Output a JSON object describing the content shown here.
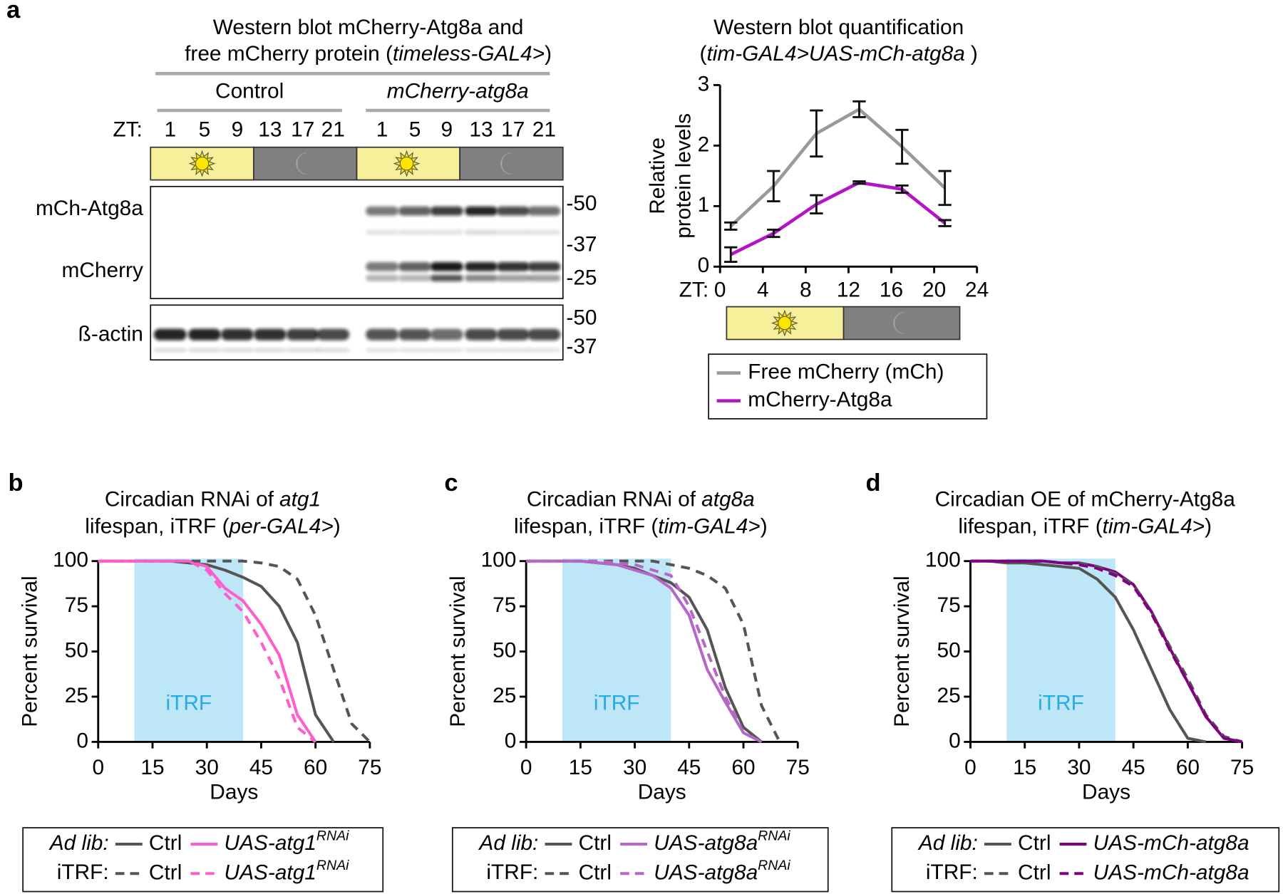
{
  "western_blot": {
    "panel": "a",
    "title": [
      [
        "Western blot mCherry-Atg8a and"
      ],
      [
        "free mCherry protein (",
        "timeless-GAL4>",
        ")"
      ]
    ],
    "groups": [
      "Control",
      "mCherry-atg8a"
    ],
    "zt_label": "ZT:",
    "lanes": [
      1,
      5,
      9,
      13,
      17,
      21,
      1,
      5,
      9,
      13,
      17,
      21
    ],
    "rows": [
      "mCh-Atg8a",
      "mCherry",
      "ß-actin"
    ],
    "markers_upper": [
      "-50",
      "-37",
      "-25"
    ],
    "markers_lower": [
      "-50",
      "-37"
    ]
  },
  "chart_data": [
    {
      "type": "line",
      "title": [
        [
          "Western blot quantification"
        ],
        [
          "(",
          "tim-GAL4>UAS-mCh-atg8a",
          ")"
        ]
      ],
      "y_label": [
        "Relative",
        "protein levels"
      ],
      "x_label": "ZT:",
      "x": [
        1,
        5,
        9,
        13,
        17,
        21
      ],
      "series": [
        {
          "name": "Free mCherry (mCh)",
          "color": "#999999",
          "values": [
            0.67,
            1.33,
            2.2,
            2.6,
            1.98,
            1.3
          ],
          "errors": [
            0.06,
            0.25,
            0.38,
            0.13,
            0.28,
            0.28
          ]
        },
        {
          "name": "mCherry-Atg8a",
          "color": "#b414c4",
          "values": [
            0.2,
            0.55,
            1.03,
            1.39,
            1.28,
            0.72
          ],
          "errors": [
            0.12,
            0.06,
            0.15,
            0.02,
            0.06,
            0.05
          ]
        }
      ],
      "xlim": [
        0,
        24
      ],
      "xticks": [
        0,
        4,
        8,
        12,
        16,
        20,
        24
      ],
      "ylim": [
        0,
        3
      ],
      "yticks": [
        0,
        1,
        2,
        3
      ]
    },
    {
      "type": "line",
      "panel": "b",
      "title": [
        [
          "Circadian RNAi of",
          "atg1"
        ],
        [
          "lifespan, iTRF (",
          "per-GAL4>",
          ")"
        ]
      ],
      "y_label": "Percent survival",
      "x_label": "Days",
      "shade": [
        10,
        40
      ],
      "shade_label": "iTRF",
      "legend_groups": [
        "Ad lib:",
        "iTRF:"
      ],
      "x": [
        0,
        5,
        10,
        15,
        20,
        25,
        30,
        35,
        40,
        45,
        50,
        55,
        60,
        65,
        70,
        75
      ],
      "series": [
        {
          "name": "Ctrl",
          "color": "#555555",
          "dashed": false,
          "values": [
            100,
            100,
            100,
            100,
            100,
            99,
            98,
            95,
            91,
            86,
            75,
            55,
            15,
            0,
            null,
            null
          ]
        },
        {
          "name": "UAS-atg1",
          "name_sup": "RNAi",
          "color": "#ff5ccc",
          "dashed": false,
          "values": [
            100,
            100,
            100,
            100,
            100,
            100,
            97,
            85,
            78,
            65,
            48,
            15,
            0,
            null,
            null,
            null
          ]
        },
        {
          "name": "Ctrl",
          "color": "#555555",
          "dashed": true,
          "values": [
            100,
            100,
            100,
            100,
            100,
            100,
            100,
            100,
            100,
            99,
            97,
            90,
            70,
            40,
            10,
            0
          ]
        },
        {
          "name": "UAS-atg1",
          "name_sup": "RNAi",
          "color": "#ff5ccc",
          "dashed": true,
          "values": [
            100,
            100,
            100,
            100,
            100,
            100,
            95,
            82,
            72,
            55,
            35,
            8,
            0,
            null,
            null,
            null
          ]
        }
      ],
      "xlim": [
        0,
        75
      ],
      "xticks": [
        0,
        15,
        30,
        45,
        60,
        75
      ],
      "ylim": [
        0,
        100
      ],
      "yticks": [
        0,
        25,
        50,
        75,
        100
      ]
    },
    {
      "type": "line",
      "panel": "c",
      "title": [
        [
          "Circadian RNAi of",
          "atg8a"
        ],
        [
          "lifespan, iTRF (",
          "tim-GAL4>",
          ")"
        ]
      ],
      "y_label": "Percent survival",
      "x_label": "Days",
      "shade": [
        10,
        40
      ],
      "shade_label": "iTRF",
      "legend_groups": [
        "Ad lib:",
        "iTRF:"
      ],
      "x": [
        0,
        5,
        10,
        15,
        20,
        25,
        30,
        35,
        40,
        45,
        50,
        55,
        60,
        65,
        70,
        75
      ],
      "series": [
        {
          "name": "Ctrl",
          "color": "#555555",
          "dashed": false,
          "values": [
            100,
            100,
            100,
            100,
            99,
            98,
            96,
            92,
            88,
            80,
            62,
            30,
            8,
            0,
            null,
            null
          ]
        },
        {
          "name": "UAS-atg8a",
          "name_sup": "RNAi",
          "color": "#b566c8",
          "dashed": false,
          "values": [
            100,
            100,
            100,
            100,
            99,
            98,
            95,
            92,
            85,
            70,
            40,
            22,
            5,
            0,
            null,
            null
          ]
        },
        {
          "name": "Ctrl",
          "color": "#555555",
          "dashed": true,
          "values": [
            100,
            100,
            100,
            100,
            100,
            100,
            100,
            100,
            98,
            96,
            92,
            85,
            65,
            20,
            0,
            null
          ]
        },
        {
          "name": "UAS-atg8a",
          "name_sup": "RNAi",
          "color": "#b566c8",
          "dashed": true,
          "values": [
            100,
            100,
            100,
            100,
            100,
            99,
            98,
            95,
            92,
            75,
            50,
            25,
            5,
            0,
            null,
            null
          ]
        }
      ],
      "xlim": [
        0,
        75
      ],
      "xticks": [
        0,
        15,
        30,
        45,
        60,
        75
      ],
      "ylim": [
        0,
        100
      ],
      "yticks": [
        0,
        25,
        50,
        75,
        100
      ]
    },
    {
      "type": "line",
      "panel": "d",
      "title": [
        [
          "Circadian OE of mCherry-Atg8a"
        ],
        [
          "lifespan, iTRF (",
          "tim-GAL4>",
          ")"
        ]
      ],
      "y_label": "Percent survival",
      "x_label": "Days",
      "shade": [
        10,
        40
      ],
      "shade_label": "iTRF",
      "legend_groups": [
        "Ad lib:",
        "iTRF:"
      ],
      "x": [
        0,
        5,
        10,
        15,
        20,
        25,
        30,
        35,
        40,
        45,
        50,
        55,
        60,
        65,
        70,
        75
      ],
      "series": [
        {
          "name": "Ctrl",
          "color": "#555555",
          "dashed": false,
          "values": [
            100,
            100,
            99,
            99,
            98,
            97,
            96,
            90,
            80,
            62,
            40,
            18,
            2,
            0,
            null,
            null
          ]
        },
        {
          "name": "UAS-mCh-atg8a",
          "color": "#800080",
          "dashed": false,
          "values": [
            100,
            100,
            100,
            100,
            100,
            99,
            99,
            97,
            94,
            87,
            72,
            52,
            33,
            14,
            2,
            0
          ]
        },
        {
          "name": "Ctrl",
          "color": "#555555",
          "dashed": true,
          "values": [
            100,
            100,
            100,
            100,
            100,
            99,
            99,
            97,
            93,
            87,
            72,
            53,
            35,
            15,
            3,
            0
          ]
        },
        {
          "name": "UAS-mCh-atg8a",
          "color": "#800080",
          "dashed": true,
          "values": [
            100,
            100,
            100,
            100,
            100,
            99,
            98,
            96,
            92,
            86,
            71,
            51,
            33,
            14,
            2,
            0
          ]
        }
      ],
      "xlim": [
        0,
        75
      ],
      "xticks": [
        0,
        15,
        30,
        45,
        60,
        75
      ],
      "ylim": [
        0,
        100
      ],
      "yticks": [
        0,
        25,
        50,
        75,
        100
      ]
    }
  ]
}
